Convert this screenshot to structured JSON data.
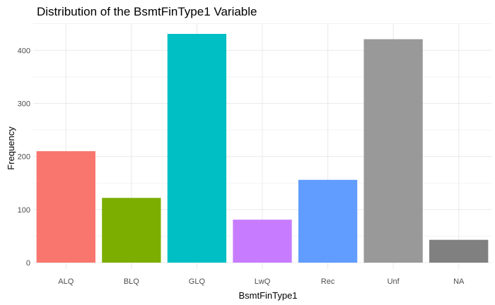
{
  "chart_data": {
    "type": "bar",
    "title": "Distribution of the BsmtFinType1 Variable",
    "xlabel": "BsmtFinType1",
    "ylabel": "Frequency",
    "categories": [
      "ALQ",
      "BLQ",
      "GLQ",
      "LwQ",
      "Rec",
      "Unf",
      "NA"
    ],
    "values": [
      210,
      122,
      431,
      81,
      156,
      421,
      43
    ],
    "colors": [
      "#F8766D",
      "#7CAE00",
      "#00BFC4",
      "#C77CFF",
      "#619CFF",
      "#999999",
      "#808080"
    ],
    "yticks": [
      0,
      100,
      200,
      300,
      400
    ],
    "ylim": [
      0,
      431
    ],
    "grid": true,
    "legend": "none"
  }
}
